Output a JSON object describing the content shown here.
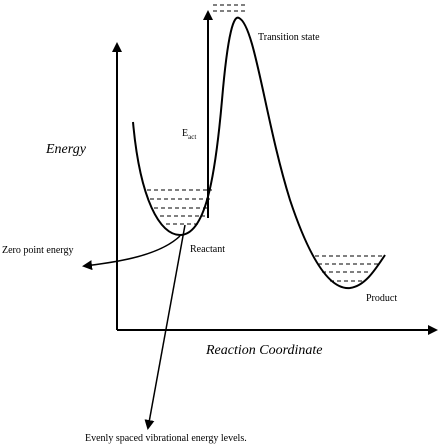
{
  "labels": {
    "transition_state": "Transition state",
    "energy": "Energy",
    "activation_energy": {
      "symbol": "E",
      "subscript": "act"
    },
    "zero_point": "Zero point energy",
    "reactant": "Reactant",
    "product": "Product",
    "reaction_coordinate": "Reaction Coordinate",
    "vibrational_levels": "Evenly spaced vibrational energy levels."
  }
}
